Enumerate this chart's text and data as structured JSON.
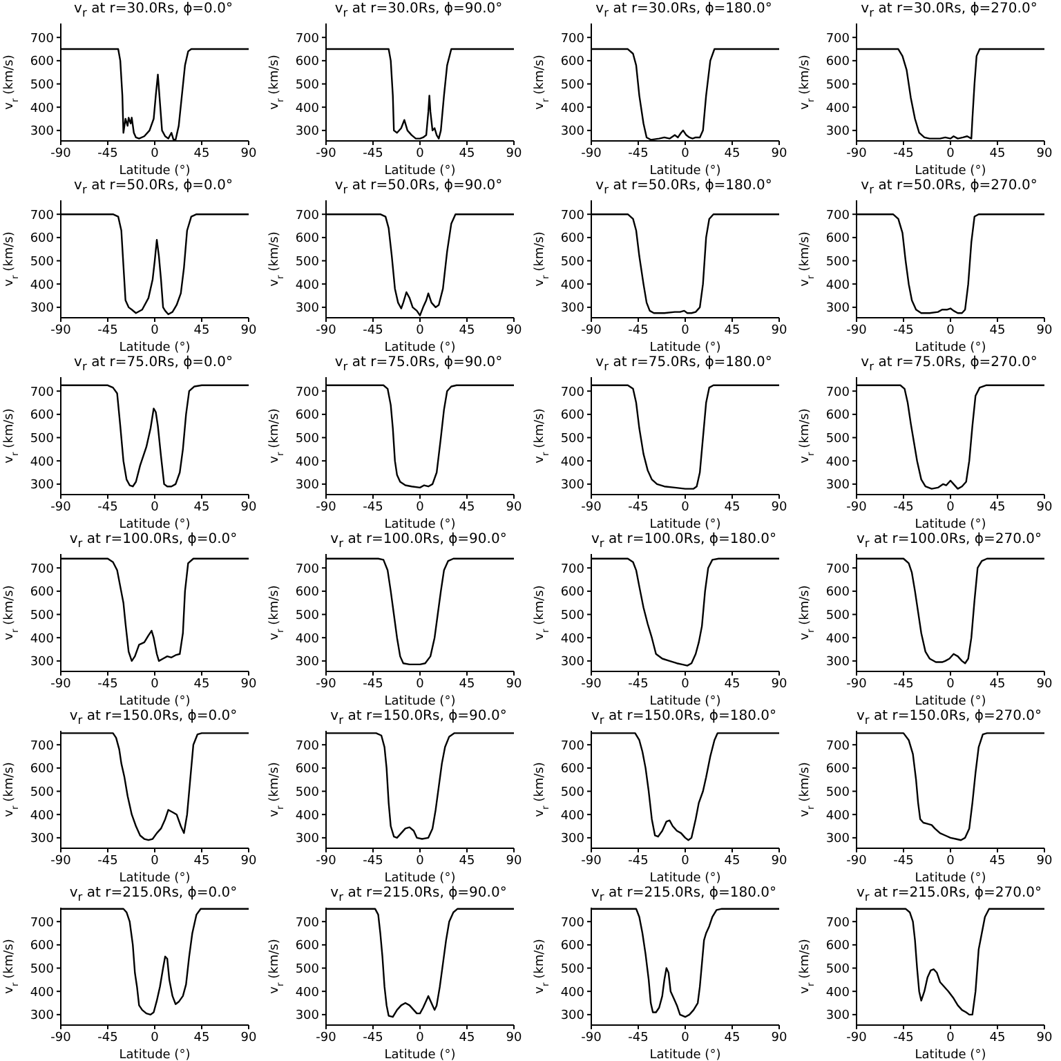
{
  "chart_data": [
    {
      "type": "line",
      "title": "v$_{r}$ at r=30.0Rs, ϕ=0.0°",
      "xlabel": "Latitude (°)",
      "ylabel": "v$_{r}$ (km/s)",
      "color": "#000000",
      "marker": "none",
      "xlim": [
        -90,
        90
      ],
      "ylim": [
        255,
        760
      ],
      "xticks": [
        -90,
        -45,
        0,
        45,
        90
      ],
      "yticks": [
        300,
        400,
        500,
        600,
        700
      ],
      "x": [
        -90,
        -35,
        -33,
        -31,
        -30,
        -28,
        -26,
        -25,
        -23,
        -22,
        -20,
        -18,
        -15,
        -10,
        -5,
        -1,
        1,
        3,
        5,
        7,
        10,
        13,
        16,
        18,
        20,
        23,
        26,
        29,
        32,
        35,
        90
      ],
      "values": [
        650,
        650,
        600,
        450,
        290,
        350,
        320,
        355,
        330,
        355,
        290,
        270,
        265,
        275,
        300,
        350,
        450,
        540,
        420,
        300,
        275,
        265,
        290,
        260,
        260,
        320,
        450,
        580,
        640,
        650,
        650
      ]
    },
    {
      "type": "line",
      "title": "v$_{r}$ at r=30.0Rs, ϕ=90.0°",
      "xlabel": "Latitude (°)",
      "ylabel": "v$_{r}$ (km/s)",
      "color": "#000000",
      "marker": "none",
      "xlim": [
        -90,
        90
      ],
      "ylim": [
        255,
        760
      ],
      "xticks": [
        -90,
        -45,
        0,
        45,
        90
      ],
      "yticks": [
        300,
        400,
        500,
        600,
        700
      ],
      "x": [
        -90,
        -30,
        -28,
        -26,
        -25,
        -22,
        -18,
        -15,
        -12,
        -8,
        -4,
        0,
        3,
        6,
        8,
        9,
        10,
        12,
        14,
        16,
        18,
        20,
        23,
        26,
        30,
        90
      ],
      "values": [
        650,
        650,
        600,
        450,
        300,
        290,
        310,
        345,
        300,
        280,
        265,
        265,
        270,
        280,
        380,
        450,
        380,
        300,
        310,
        280,
        265,
        300,
        450,
        580,
        650,
        650
      ]
    },
    {
      "type": "line",
      "title": "v$_{r}$ at r=30.0Rs, ϕ=180.0°",
      "xlabel": "Latitude (°)",
      "ylabel": "v$_{r}$ (km/s)",
      "color": "#000000",
      "marker": "none",
      "xlim": [
        -90,
        90
      ],
      "ylim": [
        255,
        760
      ],
      "xticks": [
        -90,
        -45,
        0,
        45,
        90
      ],
      "yticks": [
        300,
        400,
        500,
        600,
        700
      ],
      "x": [
        -90,
        -55,
        -50,
        -47,
        -44,
        -40,
        -37,
        -33,
        -25,
        -20,
        -15,
        -10,
        -7,
        -4,
        -2,
        1,
        4,
        7,
        10,
        14,
        17,
        20,
        24,
        28,
        90
      ],
      "values": [
        650,
        650,
        630,
        580,
        450,
        330,
        270,
        260,
        265,
        270,
        265,
        280,
        270,
        290,
        300,
        280,
        270,
        265,
        270,
        270,
        300,
        450,
        600,
        650,
        650
      ]
    },
    {
      "type": "line",
      "title": "v$_{r}$ at r=30.0Rs, ϕ=270.0°",
      "xlabel": "Latitude (°)",
      "ylabel": "v$_{r}$ (km/s)",
      "color": "#000000",
      "marker": "none",
      "xlim": [
        -90,
        90
      ],
      "ylim": [
        255,
        760
      ],
      "xticks": [
        -90,
        -45,
        0,
        45,
        90
      ],
      "yticks": [
        300,
        400,
        500,
        600,
        700
      ],
      "x": [
        -90,
        -50,
        -46,
        -42,
        -38,
        -34,
        -30,
        -25,
        -20,
        -10,
        -5,
        0,
        3,
        7,
        12,
        16,
        20,
        21,
        23,
        25,
        28,
        90
      ],
      "values": [
        650,
        650,
        620,
        560,
        440,
        350,
        290,
        270,
        265,
        265,
        270,
        265,
        275,
        265,
        270,
        275,
        265,
        350,
        500,
        620,
        650,
        650
      ]
    },
    {
      "type": "line",
      "title": "v$_{r}$ at r=50.0Rs, ϕ=0.0°",
      "xlabel": "Latitude (°)",
      "ylabel": "v$_{r}$ (km/s)",
      "color": "#000000",
      "marker": "none",
      "xlim": [
        -90,
        90
      ],
      "ylim": [
        255,
        760
      ],
      "xticks": [
        -90,
        -45,
        0,
        45,
        90
      ],
      "yticks": [
        300,
        400,
        500,
        600,
        700
      ],
      "x": [
        -90,
        -40,
        -35,
        -32,
        -30,
        -28,
        -25,
        -22,
        -18,
        -12,
        -6,
        -2,
        0,
        2,
        4,
        6,
        8,
        10,
        13,
        17,
        21,
        25,
        28,
        31,
        35,
        40,
        90
      ],
      "values": [
        700,
        700,
        690,
        630,
        480,
        330,
        300,
        290,
        275,
        290,
        340,
        420,
        500,
        590,
        520,
        420,
        300,
        285,
        270,
        280,
        310,
        360,
        470,
        630,
        690,
        700,
        700
      ]
    },
    {
      "type": "line",
      "title": "v$_{r}$ at r=50.0Rs, ϕ=90.0°",
      "xlabel": "Latitude (°)",
      "ylabel": "v$_{r}$ (km/s)",
      "color": "#000000",
      "marker": "none",
      "xlim": [
        -90,
        90
      ],
      "ylim": [
        255,
        760
      ],
      "xticks": [
        -90,
        -45,
        0,
        45,
        90
      ],
      "yticks": [
        300,
        400,
        500,
        600,
        700
      ],
      "x": [
        -90,
        -38,
        -33,
        -30,
        -27,
        -24,
        -21,
        -18,
        -16,
        -13,
        -10,
        -7,
        -3,
        0,
        3,
        6,
        8,
        11,
        15,
        18,
        22,
        26,
        30,
        34,
        90
      ],
      "values": [
        700,
        700,
        690,
        640,
        520,
        380,
        320,
        295,
        320,
        365,
        340,
        300,
        285,
        265,
        300,
        330,
        360,
        320,
        300,
        310,
        380,
        540,
        660,
        700,
        700
      ]
    },
    {
      "type": "line",
      "title": "v$_{r}$ at r=50.0Rs, ϕ=180.0°",
      "xlabel": "Latitude (°)",
      "ylabel": "v$_{r}$ (km/s)",
      "color": "#000000",
      "marker": "none",
      "xlim": [
        -90,
        90
      ],
      "ylim": [
        255,
        760
      ],
      "xticks": [
        -90,
        -45,
        0,
        45,
        90
      ],
      "yticks": [
        300,
        400,
        500,
        600,
        700
      ],
      "x": [
        -90,
        -55,
        -50,
        -47,
        -44,
        -40,
        -37,
        -34,
        -30,
        -20,
        -10,
        -5,
        -1,
        2,
        6,
        10,
        14,
        17,
        20,
        23,
        27,
        90
      ],
      "values": [
        700,
        700,
        680,
        630,
        520,
        400,
        320,
        285,
        275,
        275,
        280,
        280,
        285,
        275,
        275,
        280,
        300,
        400,
        600,
        680,
        700,
        700
      ]
    },
    {
      "type": "line",
      "title": "v$_{r}$ at r=50.0Rs, ϕ=270.0°",
      "xlabel": "Latitude (°)",
      "ylabel": "v$_{r}$ (km/s)",
      "color": "#000000",
      "marker": "none",
      "xlim": [
        -90,
        90
      ],
      "ylim": [
        255,
        760
      ],
      "xticks": [
        -90,
        -45,
        0,
        45,
        90
      ],
      "yticks": [
        300,
        400,
        500,
        600,
        700
      ],
      "x": [
        -90,
        -55,
        -50,
        -46,
        -43,
        -40,
        -37,
        -33,
        -28,
        -20,
        -12,
        -8,
        -3,
        0,
        3,
        7,
        11,
        14,
        17,
        20,
        23,
        27,
        90
      ],
      "values": [
        700,
        700,
        680,
        620,
        500,
        400,
        330,
        290,
        275,
        275,
        280,
        290,
        290,
        295,
        285,
        275,
        275,
        290,
        400,
        580,
        690,
        700,
        700
      ]
    },
    {
      "type": "line",
      "title": "v$_{r}$ at r=75.0Rs, ϕ=0.0°",
      "xlabel": "Latitude (°)",
      "ylabel": "v$_{r}$ (km/s)",
      "color": "#000000",
      "marker": "none",
      "xlim": [
        -90,
        90
      ],
      "ylim": [
        255,
        760
      ],
      "xticks": [
        -90,
        -45,
        0,
        45,
        90
      ],
      "yticks": [
        300,
        400,
        500,
        600,
        700
      ],
      "x": [
        -90,
        -45,
        -40,
        -36,
        -33,
        -30,
        -27,
        -24,
        -21,
        -18,
        -14,
        -8,
        -4,
        -1,
        1,
        3,
        6,
        9,
        12,
        16,
        20,
        24,
        27,
        30,
        33,
        38,
        45,
        90
      ],
      "values": [
        725,
        725,
        715,
        690,
        550,
        400,
        320,
        295,
        290,
        310,
        380,
        460,
        540,
        625,
        610,
        550,
        420,
        300,
        290,
        290,
        300,
        350,
        450,
        600,
        700,
        720,
        725,
        725
      ]
    },
    {
      "type": "line",
      "title": "v$_{r}$ at r=75.0Rs, ϕ=90.0°",
      "xlabel": "Latitude (°)",
      "ylabel": "v$_{r}$ (km/s)",
      "color": "#000000",
      "marker": "none",
      "xlim": [
        -90,
        90
      ],
      "ylim": [
        255,
        760
      ],
      "xticks": [
        -90,
        -45,
        0,
        45,
        90
      ],
      "yticks": [
        300,
        400,
        500,
        600,
        700
      ],
      "x": [
        -90,
        -35,
        -31,
        -28,
        -26,
        -24,
        -22,
        -19,
        -14,
        -8,
        0,
        4,
        8,
        12,
        16,
        20,
        23,
        26,
        30,
        35,
        90
      ],
      "values": [
        725,
        725,
        710,
        640,
        540,
        400,
        340,
        310,
        295,
        290,
        285,
        295,
        290,
        300,
        350,
        500,
        620,
        700,
        720,
        725,
        725
      ]
    },
    {
      "type": "line",
      "title": "v$_{r}$ at r=75.0Rs, ϕ=180.0°",
      "xlabel": "Latitude (°)",
      "ylabel": "v$_{r}$ (km/s)",
      "color": "#000000",
      "marker": "none",
      "xlim": [
        -90,
        90
      ],
      "ylim": [
        255,
        760
      ],
      "xticks": [
        -90,
        -45,
        0,
        45,
        90
      ],
      "yticks": [
        300,
        400,
        500,
        600,
        700
      ],
      "x": [
        -90,
        -55,
        -50,
        -47,
        -44,
        -40,
        -36,
        -32,
        -27,
        -20,
        -10,
        0,
        8,
        11,
        14,
        17,
        20,
        23,
        27,
        90
      ],
      "values": [
        725,
        725,
        710,
        650,
        540,
        430,
        360,
        320,
        300,
        290,
        285,
        280,
        280,
        290,
        350,
        500,
        650,
        715,
        725,
        725
      ]
    },
    {
      "type": "line",
      "title": "v$_{r}$ at r=75.0Rs, ϕ=270.0°",
      "xlabel": "Latitude (°)",
      "ylabel": "v$_{r}$ (km/s)",
      "color": "#000000",
      "marker": "none",
      "xlim": [
        -90,
        90
      ],
      "ylim": [
        255,
        760
      ],
      "xticks": [
        -90,
        -45,
        0,
        45,
        90
      ],
      "yticks": [
        300,
        400,
        500,
        600,
        700
      ],
      "x": [
        -90,
        -48,
        -44,
        -41,
        -38,
        -35,
        -32,
        -28,
        -24,
        -18,
        -12,
        -7,
        -4,
        0,
        3,
        7,
        11,
        15,
        18,
        21,
        24,
        28,
        34,
        90
      ],
      "values": [
        725,
        725,
        710,
        650,
        560,
        480,
        400,
        320,
        290,
        280,
        285,
        300,
        295,
        315,
        300,
        280,
        290,
        310,
        400,
        550,
        680,
        715,
        725,
        725
      ]
    },
    {
      "type": "line",
      "title": "v$_{r}$ at r=100.0Rs, ϕ=0.0°",
      "xlabel": "Latitude (°)",
      "ylabel": "v$_{r}$ (km/s)",
      "color": "#000000",
      "marker": "none",
      "xlim": [
        -90,
        90
      ],
      "ylim": [
        255,
        760
      ],
      "xticks": [
        -90,
        -45,
        0,
        45,
        90
      ],
      "yticks": [
        300,
        400,
        500,
        600,
        700
      ],
      "x": [
        -90,
        -45,
        -40,
        -36,
        -33,
        -30,
        -28,
        -25,
        -22,
        -19,
        -15,
        -10,
        -6,
        -3,
        -1,
        2,
        4,
        8,
        12,
        16,
        20,
        24,
        27,
        29,
        32,
        37,
        90
      ],
      "values": [
        740,
        740,
        725,
        690,
        620,
        550,
        460,
        340,
        300,
        320,
        370,
        380,
        410,
        430,
        400,
        330,
        300,
        310,
        320,
        315,
        325,
        330,
        420,
        600,
        720,
        740,
        740
      ]
    },
    {
      "type": "line",
      "title": "v$_{r}$ at r=100.0Rs, ϕ=90.0°",
      "xlabel": "Latitude (°)",
      "ylabel": "v$_{r}$ (km/s)",
      "color": "#000000",
      "marker": "none",
      "xlim": [
        -90,
        90
      ],
      "ylim": [
        255,
        760
      ],
      "xticks": [
        -90,
        -45,
        0,
        45,
        90
      ],
      "yticks": [
        300,
        400,
        500,
        600,
        700
      ],
      "x": [
        -90,
        -40,
        -35,
        -31,
        -28,
        -25,
        -22,
        -19,
        -16,
        -10,
        0,
        5,
        10,
        14,
        17,
        20,
        23,
        27,
        32,
        90
      ],
      "values": [
        740,
        740,
        735,
        690,
        600,
        500,
        400,
        320,
        290,
        285,
        285,
        290,
        320,
        400,
        500,
        600,
        690,
        730,
        740,
        740
      ]
    },
    {
      "type": "line",
      "title": "v$_{r}$ at r=100.0Rs, ϕ=180.0°",
      "xlabel": "Latitude (°)",
      "ylabel": "v$_{r}$ (km/s)",
      "color": "#000000",
      "marker": "none",
      "xlim": [
        -90,
        90
      ],
      "ylim": [
        255,
        760
      ],
      "xticks": [
        -90,
        -45,
        0,
        45,
        90
      ],
      "yticks": [
        300,
        400,
        500,
        600,
        700
      ],
      "x": [
        -90,
        -55,
        -50,
        -47,
        -44,
        -40,
        -36,
        -32,
        -28,
        -22,
        -15,
        -8,
        -3,
        2,
        6,
        10,
        13,
        16,
        19,
        22,
        26,
        32,
        90
      ],
      "values": [
        740,
        740,
        725,
        690,
        620,
        530,
        460,
        400,
        330,
        310,
        300,
        290,
        285,
        280,
        290,
        330,
        380,
        450,
        600,
        700,
        735,
        740,
        740
      ]
    },
    {
      "type": "line",
      "title": "v$_{r}$ at r=100.0Rs, ϕ=270.0°",
      "xlabel": "Latitude (°)",
      "ylabel": "v$_{r}$ (km/s)",
      "color": "#000000",
      "marker": "none",
      "xlim": [
        -90,
        90
      ],
      "ylim": [
        255,
        760
      ],
      "xticks": [
        -90,
        -45,
        0,
        45,
        90
      ],
      "yticks": [
        300,
        400,
        500,
        600,
        700
      ],
      "x": [
        -90,
        -45,
        -40,
        -37,
        -34,
        -31,
        -28,
        -24,
        -20,
        -14,
        -8,
        -5,
        -1,
        3,
        7,
        11,
        14,
        17,
        20,
        23,
        26,
        30,
        35,
        90
      ],
      "values": [
        740,
        740,
        720,
        680,
        600,
        510,
        420,
        340,
        310,
        295,
        295,
        300,
        310,
        330,
        320,
        300,
        290,
        310,
        400,
        560,
        700,
        730,
        740,
        740
      ]
    },
    {
      "type": "line",
      "title": "v$_{r}$ at r=150.0Rs, ϕ=0.0°",
      "xlabel": "Latitude (°)",
      "ylabel": "v$_{r}$ (km/s)",
      "color": "#000000",
      "marker": "none",
      "xlim": [
        -90,
        90
      ],
      "ylim": [
        255,
        760
      ],
      "xticks": [
        -90,
        -45,
        0,
        45,
        90
      ],
      "yticks": [
        300,
        400,
        500,
        600,
        700
      ],
      "x": [
        -90,
        -40,
        -37,
        -34,
        -32,
        -29,
        -26,
        -22,
        -18,
        -14,
        -10,
        -6,
        -2,
        2,
        6,
        10,
        13,
        17,
        21,
        25,
        28,
        31,
        34,
        37,
        41,
        45,
        90
      ],
      "values": [
        750,
        750,
        730,
        680,
        620,
        560,
        480,
        400,
        350,
        310,
        295,
        290,
        295,
        320,
        340,
        380,
        420,
        410,
        400,
        350,
        320,
        400,
        550,
        700,
        745,
        750,
        750
      ]
    },
    {
      "type": "line",
      "title": "v$_{r}$ at r=150.0Rs, ϕ=90.0°",
      "xlabel": "Latitude (°)",
      "ylabel": "v$_{r}$ (km/s)",
      "color": "#000000",
      "marker": "none",
      "xlim": [
        -90,
        90
      ],
      "ylim": [
        255,
        760
      ],
      "xticks": [
        -90,
        -45,
        0,
        45,
        90
      ],
      "yticks": [
        300,
        400,
        500,
        600,
        700
      ],
      "x": [
        -90,
        -42,
        -37,
        -34,
        -32,
        -30,
        -28,
        -25,
        -22,
        -18,
        -14,
        -10,
        -6,
        -3,
        2,
        8,
        12,
        15,
        18,
        21,
        24,
        28,
        33,
        90
      ],
      "values": [
        750,
        750,
        740,
        690,
        600,
        450,
        350,
        305,
        300,
        320,
        340,
        345,
        330,
        300,
        295,
        300,
        340,
        420,
        520,
        620,
        690,
        735,
        750,
        750
      ]
    },
    {
      "type": "line",
      "title": "v$_{r}$ at r=150.0Rs, ϕ=180.0°",
      "xlabel": "Latitude (°)",
      "ylabel": "v$_{r}$ (km/s)",
      "color": "#000000",
      "marker": "none",
      "xlim": [
        -90,
        90
      ],
      "ylim": [
        255,
        760
      ],
      "xticks": [
        -90,
        -45,
        0,
        45,
        90
      ],
      "yticks": [
        300,
        400,
        500,
        600,
        700
      ],
      "x": [
        -90,
        -48,
        -44,
        -41,
        -38,
        -35,
        -32,
        -29,
        -26,
        -22,
        -18,
        -15,
        -12,
        -8,
        -4,
        0,
        3,
        6,
        10,
        13,
        17,
        20,
        24,
        28,
        31,
        90
      ],
      "values": [
        750,
        750,
        720,
        670,
        600,
        500,
        380,
        310,
        305,
        330,
        370,
        375,
        350,
        330,
        320,
        300,
        290,
        300,
        380,
        450,
        500,
        560,
        650,
        720,
        750,
        750
      ]
    },
    {
      "type": "line",
      "title": "v$_{r}$ at r=150.0Rs, ϕ=270.0°",
      "xlabel": "Latitude (°)",
      "ylabel": "v$_{r}$ (km/s)",
      "color": "#000000",
      "marker": "none",
      "xlim": [
        -90,
        90
      ],
      "ylim": [
        255,
        760
      ],
      "xticks": [
        -90,
        -45,
        0,
        45,
        90
      ],
      "yticks": [
        300,
        400,
        500,
        600,
        700
      ],
      "x": [
        -90,
        -45,
        -40,
        -36,
        -33,
        -31,
        -29,
        -26,
        -22,
        -18,
        -15,
        -10,
        -5,
        0,
        5,
        10,
        14,
        18,
        21,
        24,
        27,
        31,
        35,
        90
      ],
      "values": [
        750,
        750,
        720,
        660,
        550,
        450,
        380,
        365,
        360,
        355,
        340,
        320,
        310,
        300,
        295,
        290,
        300,
        340,
        450,
        580,
        690,
        745,
        750,
        750
      ]
    },
    {
      "type": "line",
      "title": "v$_{r}$ at r=215.0Rs, ϕ=0.0°",
      "xlabel": "Latitude (°)",
      "ylabel": "v$_{r}$ (km/s)",
      "color": "#000000",
      "marker": "none",
      "xlim": [
        -90,
        90
      ],
      "ylim": [
        255,
        760
      ],
      "xticks": [
        -90,
        -45,
        0,
        45,
        90
      ],
      "yticks": [
        300,
        400,
        500,
        600,
        700
      ],
      "x": [
        -90,
        -30,
        -27,
        -24,
        -21,
        -19,
        -17,
        -15,
        -12,
        -8,
        -4,
        -1,
        2,
        5,
        8,
        10,
        12,
        14,
        17,
        20,
        23,
        27,
        30,
        33,
        36,
        40,
        44,
        90
      ],
      "values": [
        755,
        755,
        740,
        700,
        600,
        480,
        420,
        340,
        320,
        305,
        300,
        310,
        360,
        420,
        500,
        550,
        540,
        450,
        380,
        345,
        355,
        380,
        430,
        550,
        650,
        730,
        755,
        755
      ]
    },
    {
      "type": "line",
      "title": "v$_{r}$ at r=215.0Rs, ϕ=90.0°",
      "xlabel": "Latitude (°)",
      "ylabel": "v$_{r}$ (km/s)",
      "color": "#000000",
      "marker": "none",
      "xlim": [
        -90,
        90
      ],
      "ylim": [
        255,
        760
      ],
      "xticks": [
        -90,
        -45,
        0,
        45,
        90
      ],
      "yticks": [
        300,
        400,
        500,
        600,
        700
      ],
      "x": [
        -90,
        -43,
        -40,
        -38,
        -36,
        -34,
        -32,
        -30,
        -26,
        -22,
        -18,
        -14,
        -10,
        -6,
        -3,
        0,
        3,
        6,
        8,
        10,
        12,
        14,
        16,
        19,
        22,
        25,
        28,
        32,
        36,
        90
      ],
      "values": [
        755,
        755,
        730,
        650,
        550,
        420,
        340,
        295,
        290,
        320,
        340,
        350,
        340,
        320,
        305,
        305,
        330,
        360,
        380,
        360,
        340,
        320,
        340,
        420,
        520,
        620,
        700,
        740,
        755,
        755
      ]
    },
    {
      "type": "line",
      "title": "v$_{r}$ at r=215.0Rs, ϕ=180.0°",
      "xlabel": "Latitude (°)",
      "ylabel": "v$_{r}$ (km/s)",
      "color": "#000000",
      "marker": "none",
      "xlim": [
        -90,
        90
      ],
      "ylim": [
        255,
        760
      ],
      "xticks": [
        -90,
        -45,
        0,
        45,
        90
      ],
      "yticks": [
        300,
        400,
        500,
        600,
        700
      ],
      "x": [
        -90,
        -47,
        -44,
        -41,
        -38,
        -35,
        -33,
        -31,
        -28,
        -25,
        -22,
        -20,
        -18,
        -16,
        -14,
        -11,
        -8,
        -5,
        0,
        4,
        8,
        12,
        14,
        16,
        18,
        20,
        23,
        26,
        30,
        35,
        90
      ],
      "values": [
        755,
        755,
        720,
        650,
        560,
        450,
        350,
        310,
        310,
        330,
        380,
        450,
        500,
        480,
        400,
        370,
        340,
        300,
        290,
        300,
        320,
        350,
        420,
        520,
        620,
        650,
        680,
        720,
        750,
        755,
        755
      ]
    },
    {
      "type": "line",
      "title": "v$_{r}$ at r=215.0Rs, ϕ=270.0°",
      "xlabel": "Latitude (°)",
      "ylabel": "v$_{r}$ (km/s)",
      "color": "#000000",
      "marker": "none",
      "xlim": [
        -90,
        90
      ],
      "ylim": [
        255,
        760
      ],
      "xticks": [
        -90,
        -45,
        0,
        45,
        90
      ],
      "yticks": [
        300,
        400,
        500,
        600,
        700
      ],
      "x": [
        -90,
        -43,
        -39,
        -36,
        -34,
        -32,
        -30,
        -28,
        -25,
        -22,
        -19,
        -16,
        -13,
        -10,
        -6,
        -2,
        3,
        7,
        11,
        15,
        18,
        21,
        24,
        27,
        30,
        33,
        37,
        90
      ],
      "values": [
        755,
        755,
        740,
        700,
        620,
        500,
        400,
        360,
        400,
        460,
        490,
        495,
        480,
        440,
        420,
        400,
        370,
        340,
        320,
        310,
        300,
        300,
        400,
        580,
        650,
        720,
        755,
        755
      ]
    }
  ]
}
